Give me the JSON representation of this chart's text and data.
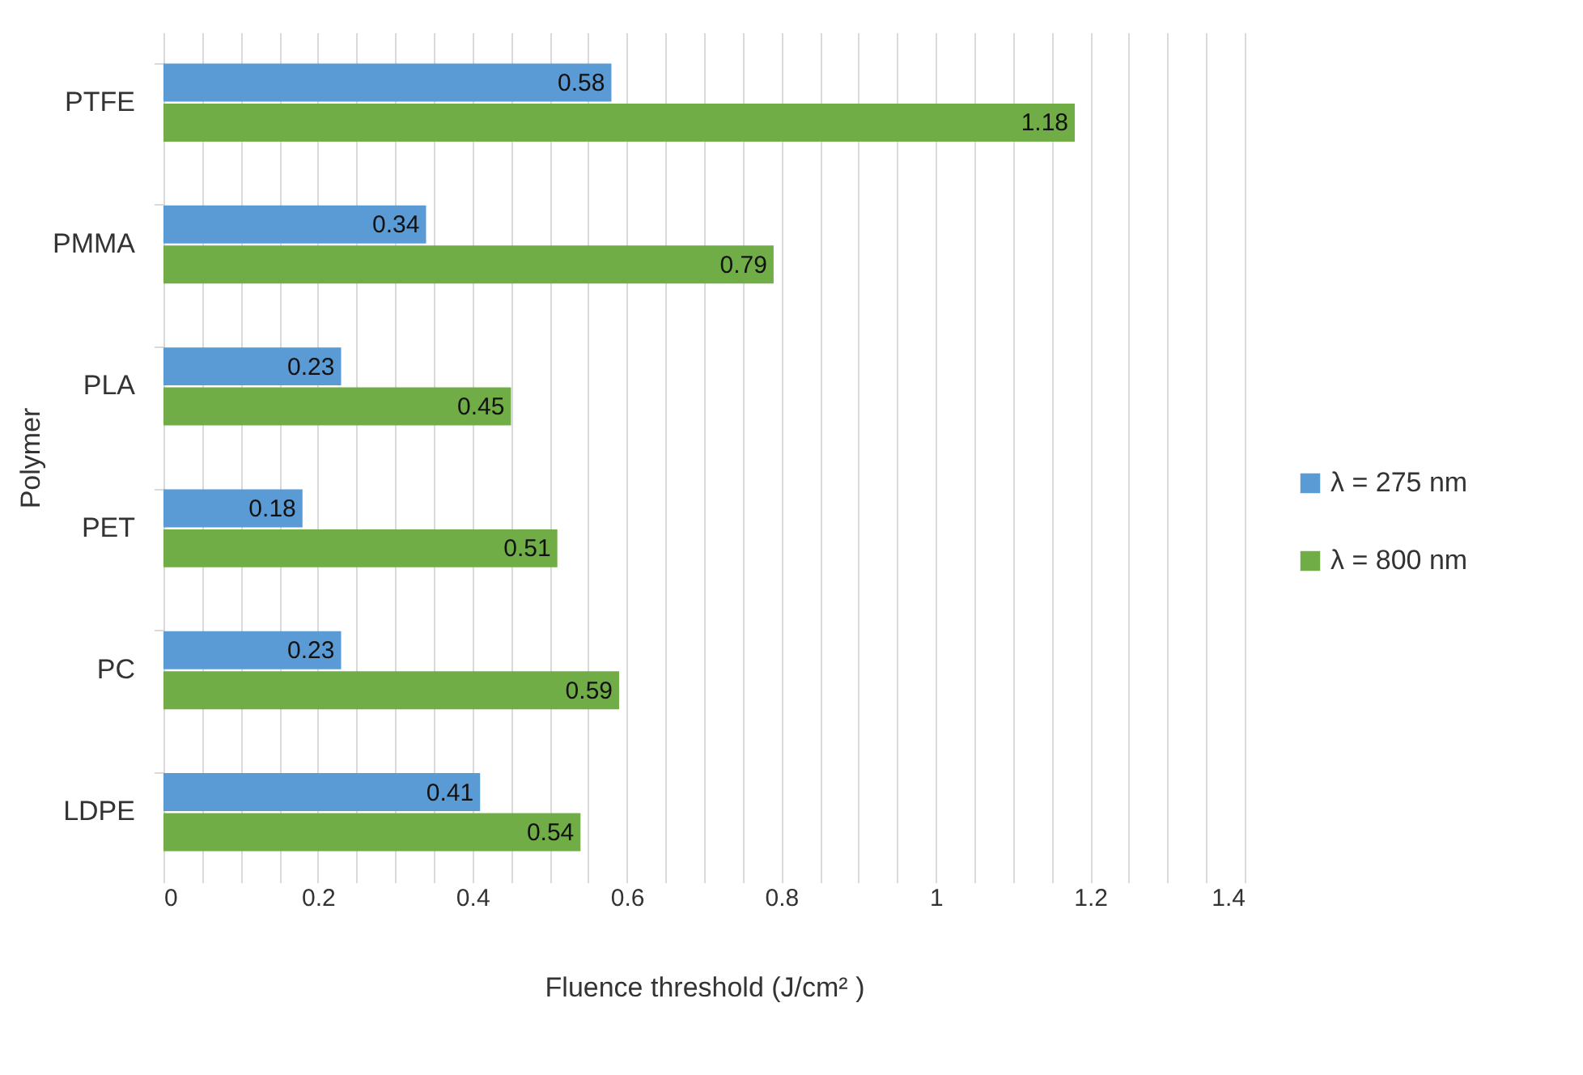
{
  "chart_data": {
    "type": "bar",
    "orientation": "horizontal",
    "xlabel": "Fluence threshold (J/cm² )",
    "ylabel": "Polymer",
    "categories": [
      "PTFE",
      "PMMA",
      "PLA",
      "PET",
      "PC",
      "LDPE"
    ],
    "series": [
      {
        "name": "λ =  275 nm",
        "color": "#5b9bd5",
        "values": [
          0.58,
          0.34,
          0.23,
          0.18,
          0.23,
          0.41
        ]
      },
      {
        "name": "λ =   800 nm",
        "color": "#70ad47",
        "values": [
          1.18,
          0.79,
          0.45,
          0.51,
          0.59,
          0.54
        ]
      }
    ],
    "xlim": [
      0,
      1.4
    ],
    "xticks": [
      0,
      {
        "value": 0.05,
        "label": null
      },
      {
        "value": 0.1,
        "label": null
      },
      {
        "value": 0.15,
        "label": null
      },
      0.2,
      {
        "value": 0.25,
        "label": null
      },
      {
        "value": 0.3,
        "label": null
      },
      {
        "value": 0.35,
        "label": null
      },
      0.4,
      {
        "value": 0.45,
        "label": null
      },
      {
        "value": 0.5,
        "label": null
      },
      {
        "value": 0.55,
        "label": null
      },
      0.6,
      {
        "value": 0.65,
        "label": null
      },
      {
        "value": 0.7,
        "label": null
      },
      {
        "value": 0.75,
        "label": null
      },
      0.8,
      {
        "value": 0.85,
        "label": null
      },
      {
        "value": 0.9,
        "label": null
      },
      {
        "value": 0.95,
        "label": null
      },
      1,
      {
        "value": 1.05,
        "label": null
      },
      {
        "value": 1.1,
        "label": null
      },
      {
        "value": 1.15,
        "label": null
      },
      1.2,
      {
        "value": 1.25,
        "label": null
      },
      {
        "value": 1.3,
        "label": null
      },
      {
        "value": 1.35,
        "label": null
      },
      1.4
    ],
    "grid": "x",
    "legend": "right",
    "data_labels": true
  }
}
